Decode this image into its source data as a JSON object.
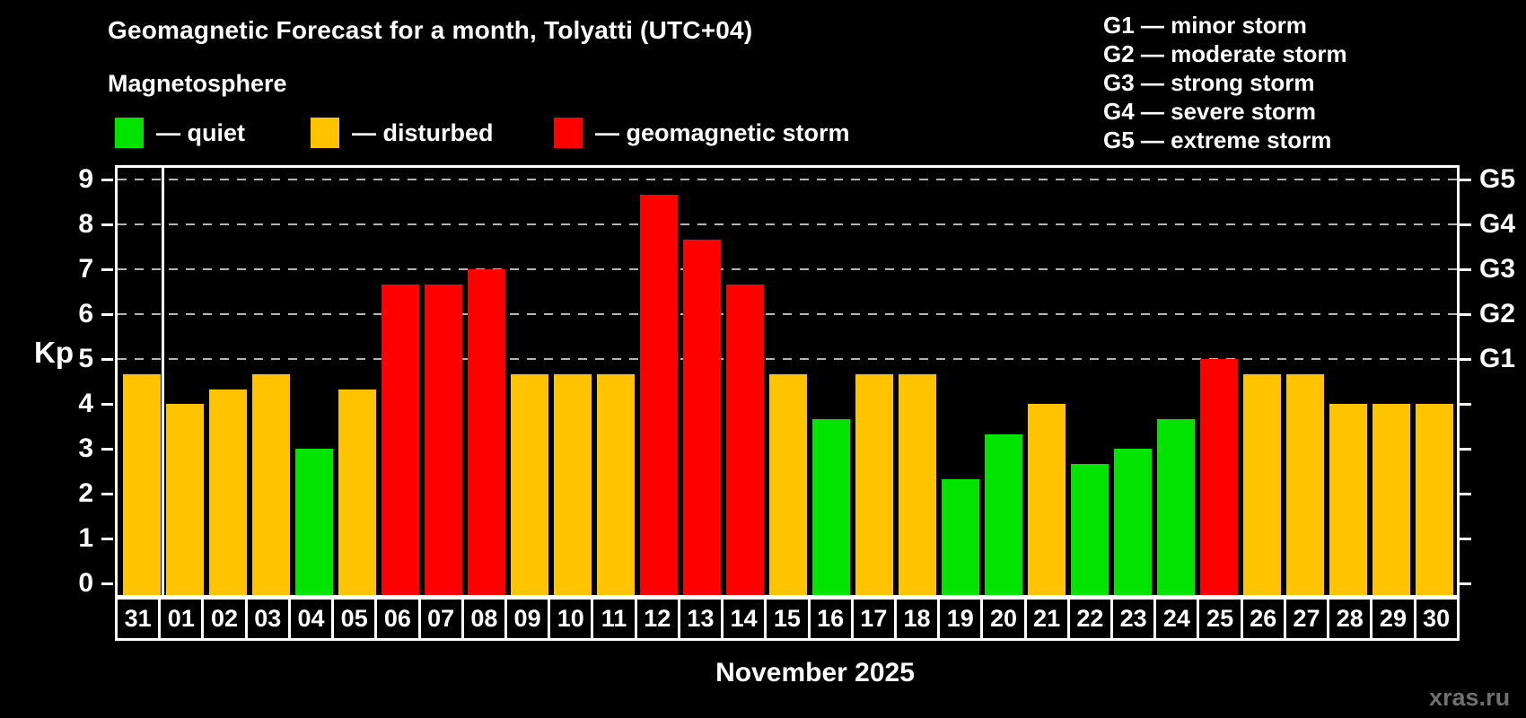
{
  "colors": {
    "quiet": "#00e400",
    "disturbed": "#ffc300",
    "storm": "#ff0000",
    "grid": "#b4b4b4",
    "axis": "#ffffff",
    "watermark": "#707070",
    "background": "#000000"
  },
  "header": {
    "title": "Geomagnetic Forecast for a month, Tolyatti (UTC+04)",
    "subtitle": "Magnetosphere"
  },
  "legend": {
    "items": [
      {
        "status": "quiet",
        "label": "— quiet"
      },
      {
        "status": "disturbed",
        "label": "— disturbed"
      },
      {
        "status": "storm",
        "label": "— geomagnetic storm"
      }
    ]
  },
  "g_legend": {
    "items": [
      "G1 — minor storm",
      "G2 — moderate storm",
      "G3 — strong storm",
      "G4 — severe storm",
      "G5 — extreme storm"
    ]
  },
  "watermark": "xras.ru",
  "chart_data": {
    "type": "bar",
    "title": "Geomagnetic Forecast for a month, Tolyatti (UTC+04)",
    "xlabel": "November 2025",
    "ylabel": "Kp",
    "ylim": [
      0,
      9
    ],
    "grid": "horizontal dashed lines at Kp 5,6,7,8,9",
    "grid_levels": [
      5,
      6,
      7,
      8,
      9
    ],
    "yticks": [
      0,
      1,
      2,
      3,
      4,
      5,
      6,
      7,
      8,
      9
    ],
    "right_axis_ticks": [
      {
        "label": "G1",
        "level": 5
      },
      {
        "label": "G2",
        "level": 6
      },
      {
        "label": "G3",
        "level": 7
      },
      {
        "label": "G4",
        "level": 8
      },
      {
        "label": "G5",
        "level": 9
      }
    ],
    "month_boundary_after": "31",
    "categories": [
      "31",
      "01",
      "02",
      "03",
      "04",
      "05",
      "06",
      "07",
      "08",
      "09",
      "10",
      "11",
      "12",
      "13",
      "14",
      "15",
      "16",
      "17",
      "18",
      "19",
      "20",
      "21",
      "22",
      "23",
      "24",
      "25",
      "26",
      "27",
      "28",
      "29",
      "30"
    ],
    "values": [
      4.67,
      4.0,
      4.33,
      4.67,
      3.0,
      4.33,
      6.67,
      6.67,
      7.0,
      4.67,
      4.67,
      4.67,
      8.67,
      7.67,
      6.67,
      4.67,
      3.67,
      4.67,
      4.67,
      2.33,
      3.33,
      4.0,
      2.67,
      3.0,
      3.67,
      5.0,
      4.67,
      4.67,
      4.0,
      4.0,
      4.0
    ],
    "statuses": [
      "disturbed",
      "disturbed",
      "disturbed",
      "disturbed",
      "quiet",
      "disturbed",
      "storm",
      "storm",
      "storm",
      "disturbed",
      "disturbed",
      "disturbed",
      "storm",
      "storm",
      "storm",
      "disturbed",
      "quiet",
      "disturbed",
      "disturbed",
      "quiet",
      "quiet",
      "disturbed",
      "quiet",
      "quiet",
      "quiet",
      "storm",
      "disturbed",
      "disturbed",
      "disturbed",
      "disturbed",
      "disturbed"
    ]
  }
}
